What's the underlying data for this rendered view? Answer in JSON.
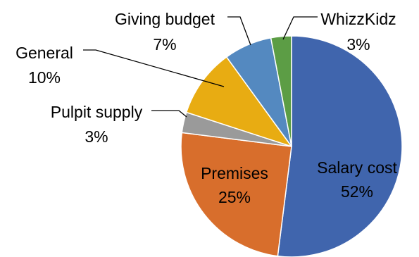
{
  "chart_data": {
    "type": "pie",
    "title": "",
    "start_angle_deg": 0,
    "direction": "clockwise",
    "slices": [
      {
        "label": "Salary cost",
        "value": 52,
        "value_label": "52%",
        "color": "#4065AD"
      },
      {
        "label": "Premises",
        "value": 25,
        "value_label": "25%",
        "color": "#D86E2C"
      },
      {
        "label": "Pulpit supply",
        "value": 3,
        "value_label": "3%",
        "color": "#9A9A9A"
      },
      {
        "label": "General",
        "value": 10,
        "value_label": "10%",
        "color": "#E8AC12"
      },
      {
        "label": "Giving budget",
        "value": 7,
        "value_label": "7%",
        "color": "#5489C0"
      },
      {
        "label": "WhizzKidz",
        "value": 3,
        "value_label": "3%",
        "color": "#5C9D45"
      }
    ],
    "legend": "none",
    "slice_border_color": "#FFFFFF"
  }
}
